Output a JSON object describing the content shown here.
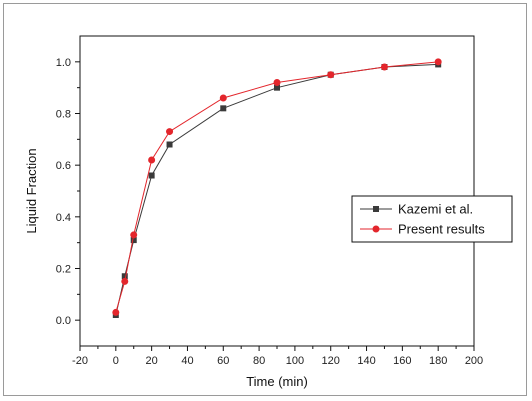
{
  "chart_data": {
    "type": "line",
    "title": "",
    "xlabel": "Time (min)",
    "ylabel": "Liquid Fraction",
    "xlim": [
      -20,
      200
    ],
    "ylim": [
      -0.1,
      1.1
    ],
    "xticks": [
      -20,
      0,
      20,
      40,
      60,
      80,
      100,
      120,
      140,
      160,
      180,
      200
    ],
    "yticks": [
      0.0,
      0.2,
      0.4,
      0.6,
      0.8,
      1.0
    ],
    "ytick_labels": [
      "0.0",
      "0.2",
      "0.4",
      "0.6",
      "0.8",
      "1.0"
    ],
    "grid": false,
    "legend_position": "center-right",
    "series": [
      {
        "name": "Kazemi et al.",
        "color": "#3a3a3a",
        "marker": "square",
        "x": [
          0,
          5,
          10,
          20,
          30,
          60,
          90,
          120,
          150,
          180
        ],
        "y": [
          0.02,
          0.17,
          0.31,
          0.56,
          0.68,
          0.82,
          0.9,
          0.95,
          0.98,
          0.99
        ]
      },
      {
        "name": "Present results",
        "color": "#e3262c",
        "marker": "circle",
        "x": [
          0,
          5,
          10,
          20,
          30,
          60,
          90,
          120,
          150,
          180
        ],
        "y": [
          0.03,
          0.15,
          0.33,
          0.62,
          0.73,
          0.86,
          0.92,
          0.95,
          0.98,
          1.0
        ]
      }
    ]
  }
}
